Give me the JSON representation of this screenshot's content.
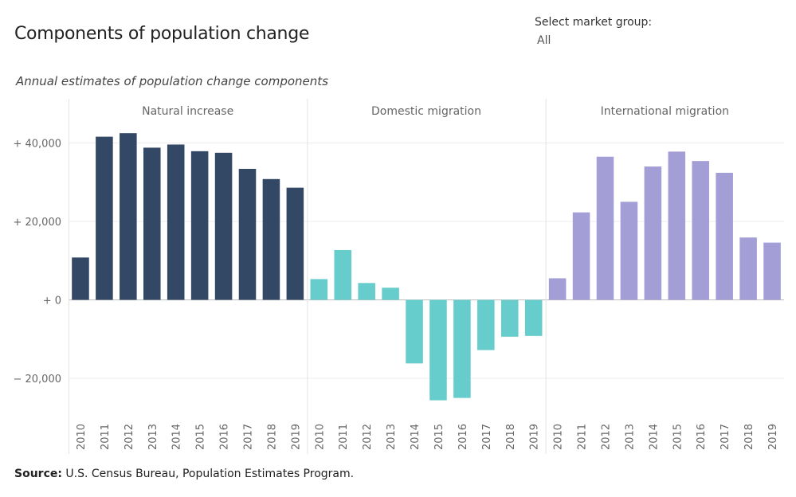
{
  "header": {
    "title": "Components of population change",
    "subtitle": "Annual estimates of population change components"
  },
  "filter": {
    "label": "Select market group:",
    "value": "All"
  },
  "source": {
    "label": "Source:",
    "text": "U.S. Census Bureau, Population Estimates Program."
  },
  "chart_data": {
    "type": "bar",
    "categories": [
      "2010",
      "2011",
      "2012",
      "2013",
      "2014",
      "2015",
      "2016",
      "2017",
      "2018",
      "2019"
    ],
    "y_tick_values": [
      40000,
      20000,
      0,
      -20000
    ],
    "y_tick_labels": [
      "+ 40,000",
      "+ 20,000",
      "+ 0",
      "− 20,000"
    ],
    "ylim": [
      -29000,
      51000
    ],
    "grid": true,
    "panels": [
      {
        "name": "Natural increase",
        "color": "#324864",
        "values": [
          10800,
          41600,
          42500,
          38800,
          39600,
          37900,
          37500,
          33400,
          30800,
          28600
        ]
      },
      {
        "name": "Domestic migration",
        "color": "#66cdcc",
        "values": [
          5300,
          12700,
          4300,
          3100,
          -16200,
          -25600,
          -25000,
          -12800,
          -9400,
          -9200
        ]
      },
      {
        "name": "International migration",
        "color": "#a39ed6",
        "values": [
          5500,
          22300,
          36500,
          25000,
          34000,
          37800,
          35400,
          32400,
          15900,
          14600
        ]
      }
    ]
  }
}
